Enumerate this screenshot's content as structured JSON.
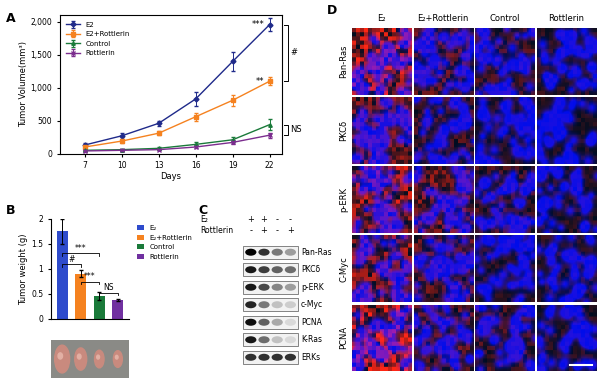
{
  "panel_labels": [
    "A",
    "B",
    "C",
    "D"
  ],
  "chart_data": [
    {
      "type": "line",
      "x_label": "Days",
      "y_label": "Tumor Volume(mm³)",
      "x": [
        7,
        10,
        13,
        16,
        19,
        22
      ],
      "xlim": [
        5,
        23
      ],
      "xticks": [
        7,
        10,
        13,
        16,
        19,
        22
      ],
      "ylim": [
        0,
        2100
      ],
      "yticks": [
        0,
        500,
        {
          "value": 1000,
          "label": "1,000"
        },
        {
          "value": 1500,
          "label": "1,500"
        },
        {
          "value": 2000,
          "label": "2,000"
        }
      ],
      "legend": "upper left",
      "series": [
        {
          "name": "E2",
          "color": "#1f2a8a",
          "marker": "diamond",
          "values": [
            130,
            270,
            460,
            830,
            1400,
            1960
          ],
          "errors": [
            30,
            50,
            40,
            100,
            150,
            100
          ],
          "annotation": "***"
        },
        {
          "name": "E2+Rottlerin",
          "color": "#f58220",
          "marker": "square",
          "values": [
            100,
            190,
            310,
            560,
            810,
            1100
          ],
          "errors": [
            20,
            30,
            30,
            60,
            80,
            60
          ],
          "annotation": "**"
        },
        {
          "name": "Control",
          "color": "#1a7a3a",
          "marker": "triangle",
          "values": [
            50,
            60,
            80,
            140,
            210,
            440
          ],
          "errors": [
            10,
            10,
            20,
            30,
            40,
            80
          ]
        },
        {
          "name": "Rottlerin",
          "color": "#7b2d8e",
          "marker": "x",
          "values": [
            40,
            50,
            60,
            100,
            170,
            280
          ],
          "errors": [
            10,
            10,
            10,
            20,
            30,
            40
          ]
        }
      ],
      "annotations": [
        {
          "text": "#",
          "between": [
            "E2",
            "E2+Rottlerin"
          ]
        },
        {
          "text": "NS",
          "between": [
            "Control",
            "Rottlerin"
          ]
        }
      ]
    },
    {
      "type": "bar",
      "y_label": "Tumor weight (g)",
      "categories": [
        null,
        null,
        null,
        null
      ],
      "ylim": [
        0,
        2
      ],
      "yticks": [
        0,
        0.5,
        1,
        1.5,
        2
      ],
      "tick_labels": "y",
      "legend": "right",
      "series": [
        {
          "name": "E₂",
          "color": "#2e4bcc",
          "values": [
            1.75,
            null,
            null,
            null
          ],
          "errors": [
            0.25,
            null,
            null,
            null
          ]
        },
        {
          "name": "E₂+Rottlerin",
          "color": "#f58220",
          "values": [
            null,
            0.9,
            null,
            null
          ],
          "errors": [
            null,
            0.07,
            null,
            null
          ]
        },
        {
          "name": "Control",
          "color": "#1a7a3a",
          "values": [
            null,
            null,
            0.45,
            null
          ],
          "errors": [
            null,
            null,
            0.08,
            null
          ]
        },
        {
          "name": "Rottlerin",
          "color": "#7030a0",
          "values": [
            null,
            null,
            null,
            0.38
          ],
          "errors": [
            null,
            null,
            null,
            0.02
          ]
        }
      ],
      "comparisons": [
        {
          "bars": [
            2,
            3
          ],
          "label": "NS"
        },
        {
          "bars": [
            1,
            2
          ],
          "label": "***"
        },
        {
          "bars": [
            0,
            1
          ],
          "label": "#"
        },
        {
          "bars": [
            0,
            2
          ],
          "label": "***"
        }
      ]
    }
  ],
  "blot": {
    "lanes": [
      {
        "label": "E₂",
        "signs": [
          "+",
          "+",
          "-",
          "-"
        ]
      },
      {
        "label": "Rottlerin",
        "signs": [
          "-",
          "+",
          "-",
          "+"
        ]
      }
    ],
    "rows": [
      {
        "label": "Pan-Ras",
        "intensity": [
          1.0,
          0.8,
          0.5,
          0.35
        ]
      },
      {
        "label": "PKCδ",
        "intensity": [
          0.9,
          0.75,
          0.6,
          0.55
        ]
      },
      {
        "label": "p-ERK",
        "intensity": [
          0.9,
          0.7,
          0.45,
          0.35
        ]
      },
      {
        "label": "c-Myc",
        "intensity": [
          0.85,
          0.5,
          0.2,
          0.15
        ]
      },
      {
        "label": "PCNA",
        "intensity": [
          0.95,
          0.6,
          0.3,
          0.1
        ]
      },
      {
        "label": "K-Ras",
        "intensity": [
          0.9,
          0.55,
          0.2,
          0.1
        ]
      },
      {
        "label": "ERKs",
        "intensity": [
          0.8,
          0.8,
          0.8,
          0.8
        ]
      }
    ]
  },
  "immunofluorescence": {
    "columns": [
      "E₂",
      "E₂+Rottlerin",
      "Control",
      "Rottlerin"
    ],
    "rows": [
      {
        "label": "Pan-Ras",
        "red_intensity": [
          0.8,
          0.4,
          0.3,
          0.2
        ]
      },
      {
        "label": "PKCδ",
        "red_intensity": [
          0.5,
          0.3,
          0.2,
          0.15
        ]
      },
      {
        "label": "p-ERK",
        "red_intensity": [
          0.7,
          0.5,
          0.3,
          0.2
        ]
      },
      {
        "label": "C-Myc",
        "red_intensity": [
          0.6,
          0.4,
          0.2,
          0.2
        ]
      },
      {
        "label": "PCNA",
        "red_intensity": [
          0.9,
          0.4,
          0.3,
          0.2
        ]
      }
    ]
  }
}
